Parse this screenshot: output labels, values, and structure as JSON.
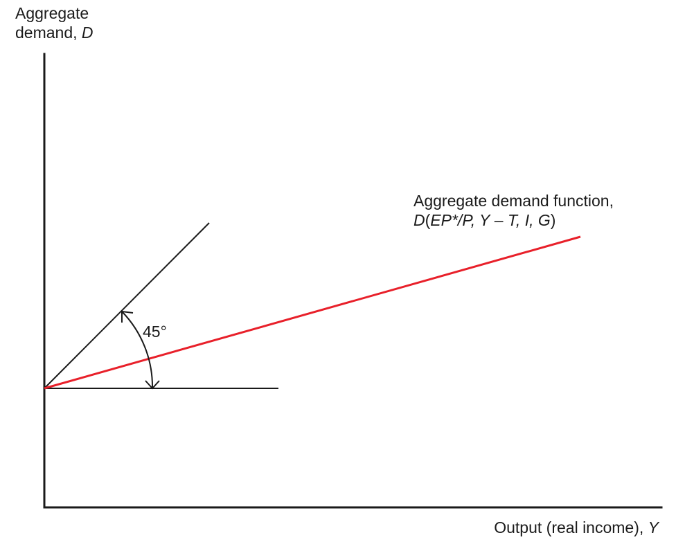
{
  "y_axis_label": {
    "line1": "Aggregate",
    "line2_prefix": "demand, ",
    "line2_var": "D"
  },
  "x_axis_label": {
    "prefix": "Output (real income), ",
    "var": "Y"
  },
  "function_label": {
    "line1": "Aggregate demand function,",
    "line2_parts": [
      {
        "text": "D",
        "italic": true
      },
      {
        "text": "(",
        "italic": false
      },
      {
        "text": "EP*/P, Y",
        "italic": true
      },
      {
        "text": " – ",
        "italic": false
      },
      {
        "text": "T, I, G",
        "italic": true
      },
      {
        "text": ")",
        "italic": false
      }
    ]
  },
  "angle_label": "45°",
  "colors": {
    "demand_line": "#e8202a",
    "axes": "#1a1a1a"
  }
}
